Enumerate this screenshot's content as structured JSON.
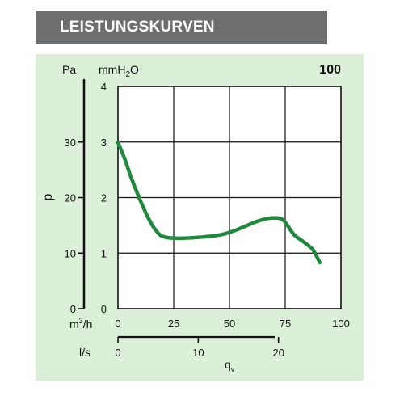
{
  "header": {
    "title": "LEISTUNGSKURVEN"
  },
  "colors": {
    "header_bg": "#6d6e70",
    "panel_bg": "#dcefd8",
    "curve": "#1f8a3c"
  },
  "chart_data": {
    "type": "line",
    "model": "100",
    "ylabel": "p",
    "xlabel": "qv",
    "y_unit_left": "Pa",
    "y_unit_right": "mmH2O",
    "x_unit_top": "m3/h",
    "x_unit_bottom": "l/s",
    "ylim_mmh2o": [
      0,
      4
    ],
    "xlim_m3h": [
      0,
      100
    ],
    "ylim_pa": [
      0,
      40
    ],
    "xlim_ls": [
      0,
      27.78
    ],
    "yticks_mmh2o": [
      "0",
      "1",
      "2",
      "3",
      "4"
    ],
    "yticks_pa": [
      "0",
      "10",
      "20",
      "30"
    ],
    "xticks_m3h": [
      "0",
      "25",
      "50",
      "75",
      "100"
    ],
    "xticks_ls": [
      "0",
      "10",
      "20"
    ],
    "grid": true,
    "series": [
      {
        "x": [
          0,
          3,
          6,
          10,
          14,
          18,
          21,
          25,
          30,
          38,
          46,
          52,
          58,
          63,
          68,
          72,
          74,
          76,
          79,
          83,
          87,
          89,
          90.5
        ],
        "y": [
          2.99,
          2.7,
          2.35,
          1.95,
          1.6,
          1.36,
          1.29,
          1.27,
          1.27,
          1.29,
          1.33,
          1.4,
          1.5,
          1.58,
          1.63,
          1.63,
          1.6,
          1.5,
          1.33,
          1.21,
          1.08,
          0.95,
          0.83
        ]
      }
    ]
  }
}
